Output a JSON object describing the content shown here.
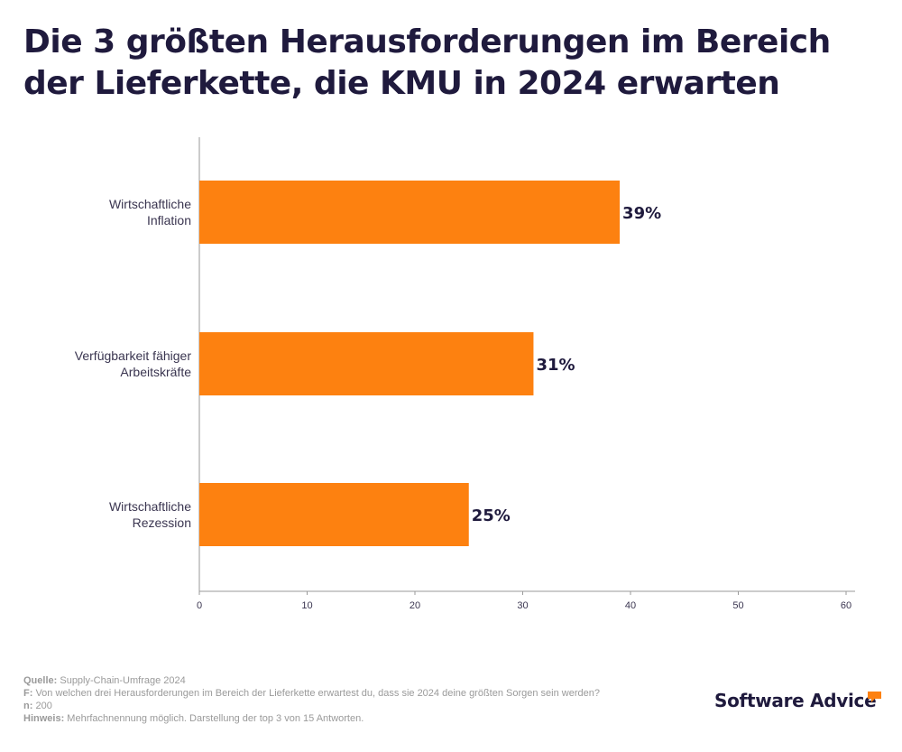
{
  "title_lines": [
    "Die 3 größten Herausforderungen im Bereich",
    "der Lieferkette, die KMU in 2024 erwarten"
  ],
  "chart_data": {
    "type": "bar",
    "orientation": "horizontal",
    "categories": [
      [
        "Wirtschaftliche",
        "Inflation"
      ],
      [
        "Verfügbarkeit fähiger",
        "Arbeitskräfte"
      ],
      [
        "Wirtschaftliche",
        "Rezession"
      ]
    ],
    "values": [
      39,
      31,
      25
    ],
    "data_labels": [
      "39%",
      "31%",
      "25%"
    ],
    "xlim": [
      0,
      60
    ],
    "xticks": [
      0,
      10,
      20,
      30,
      40,
      50,
      60
    ],
    "grid": false,
    "bar_color": "#fd8110"
  },
  "footer": {
    "source_label": "Quelle:",
    "source_text": "Supply-Chain-Umfrage 2024",
    "question_label": "F:",
    "question_text": "Von welchen drei Herausforderungen im Bereich der Lieferkette erwartest du, dass sie 2024 deine größten Sorgen sein werden?",
    "n_label": "n:",
    "n_text": "200",
    "note_label": "Hinweis:",
    "note_text": "Mehrfachnennung möglich. Darstellung der top 3 von 15 Antworten."
  },
  "logo": {
    "text": "Software Advice",
    "brand_color": "#fd8110"
  }
}
